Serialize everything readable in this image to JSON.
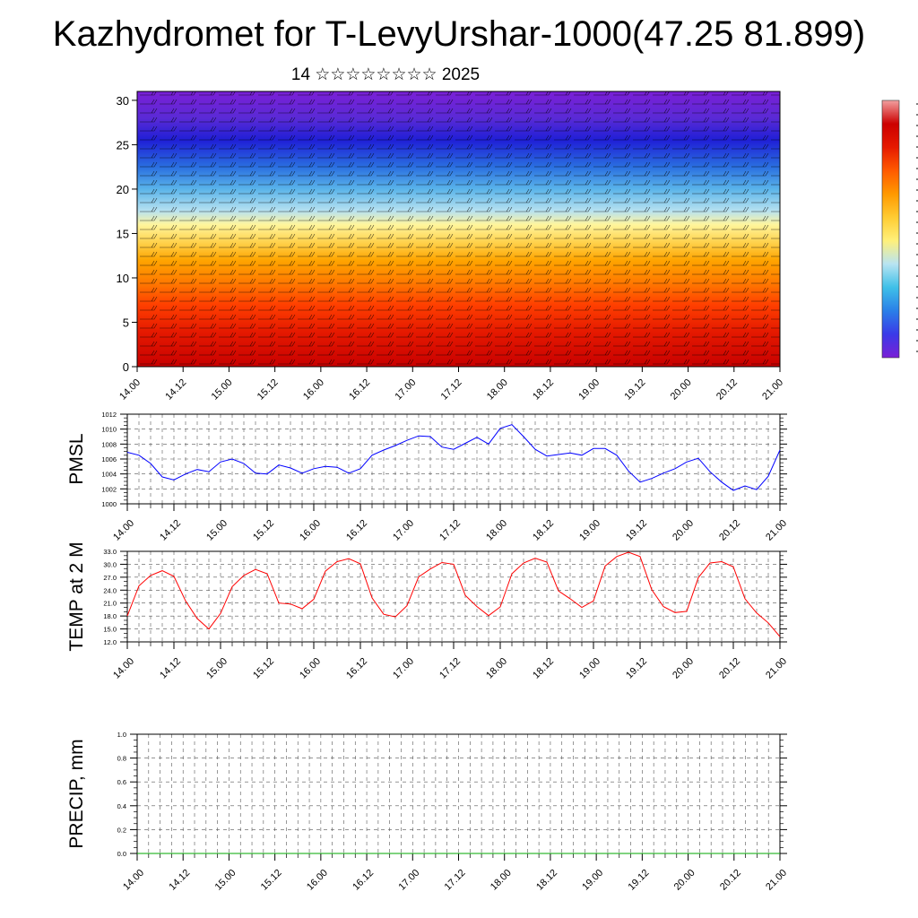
{
  "header": {
    "title": "Kazhydromet for T-LevyUrshar-1000(47.25 81.899)",
    "subtitle": "14 ☆☆☆☆☆☆☆☆ 2025"
  },
  "colors": {
    "pmsl_line": "#0000ff",
    "temp_line": "#ff0000",
    "precip_line": "#00aa00",
    "grid": "#666666",
    "colorbar_stops": [
      "#7a1fd6",
      "#3a3ae8",
      "#2a7fe8",
      "#3fc0e8",
      "#b8e4f2",
      "#fff07a",
      "#ffcc33",
      "#ff9900",
      "#ff5a00",
      "#e61a00",
      "#cc0000",
      "#f2a0a0"
    ]
  },
  "chart_data": [
    {
      "type": "heatmap",
      "name": "cross-section",
      "title": "",
      "ylabel": "",
      "x_tick_labels": [
        "14.00",
        "14.12",
        "15.00",
        "15.12",
        "16.00",
        "16.12",
        "17.00",
        "17.12",
        "18.00",
        "18.12",
        "19.00",
        "19.12",
        "20.00",
        "20.12",
        "21.00"
      ],
      "y_ticks": [
        0,
        5,
        10,
        15,
        20,
        25,
        30
      ],
      "ylim": [
        0,
        31
      ],
      "color_levels_bottom_to_top": [
        "#c80000",
        "#e61a00",
        "#ff4000",
        "#ff7a00",
        "#ffa500",
        "#ffd24d",
        "#fff59d",
        "#b8e2f0",
        "#5ab4ea",
        "#2a6fe0",
        "#1f1fd6",
        "#5a2ad6",
        "#7a1fd6"
      ],
      "color_level_heights": [
        0,
        4,
        7,
        9.5,
        12,
        14,
        16,
        17.5,
        20,
        22.5,
        25.5,
        28,
        31
      ],
      "wind_barbs": true
    },
    {
      "type": "line",
      "name": "pmsl",
      "ylabel": "PMSL",
      "ylim": [
        1000,
        1012
      ],
      "y_ticks": [
        1000,
        1002,
        1004,
        1006,
        1008,
        1010,
        1012
      ],
      "x_tick_labels": [
        "14.00",
        "14.12",
        "15.00",
        "15.12",
        "16.00",
        "16.12",
        "17.00",
        "17.12",
        "18.00",
        "18.12",
        "19.00",
        "19.12",
        "20.00",
        "20.12",
        "21.00"
      ],
      "x_hours": [
        0,
        3,
        6,
        9,
        12,
        15,
        18,
        21,
        24,
        27,
        30,
        33,
        36,
        39,
        42,
        45,
        48,
        51,
        54,
        57,
        60,
        63,
        66,
        69,
        72,
        75,
        78,
        81,
        84,
        87,
        90,
        93,
        96,
        99,
        102,
        105,
        108,
        111,
        114,
        117,
        120,
        123,
        126,
        129,
        132,
        135,
        138,
        141,
        144,
        147,
        150,
        153,
        156,
        159,
        162,
        165,
        168
      ],
      "values": [
        1006.9,
        1006.5,
        1005.4,
        1003.6,
        1003.2,
        1004.0,
        1004.6,
        1004.3,
        1005.6,
        1006.0,
        1005.4,
        1004.1,
        1004.0,
        1005.2,
        1004.8,
        1004.1,
        1004.7,
        1005.0,
        1004.9,
        1004.1,
        1004.7,
        1006.5,
        1007.2,
        1007.8,
        1008.5,
        1009.1,
        1009.0,
        1007.6,
        1007.3,
        1008.1,
        1008.9,
        1008.0,
        1010.1,
        1010.6,
        1009.0,
        1007.3,
        1006.4,
        1006.6,
        1006.8,
        1006.5,
        1007.4,
        1007.4,
        1006.5,
        1004.4,
        1002.9,
        1003.4,
        1004.1,
        1004.7,
        1005.6,
        1006.1,
        1004.3,
        1002.9,
        1001.8,
        1002.4,
        1001.9,
        1003.7,
        1007.2
      ]
    },
    {
      "type": "line",
      "name": "temp2m",
      "ylabel": "TEMP at 2 M",
      "ylim": [
        12,
        33
      ],
      "y_ticks": [
        12,
        15,
        18,
        21,
        24,
        27,
        30,
        33
      ],
      "y_tick_labels": [
        "12.0",
        "15.0",
        "18.0",
        "21.0",
        "24.0",
        "27.0",
        "30.0",
        "33.0"
      ],
      "x_tick_labels": [
        "14.00",
        "14.12",
        "15.00",
        "15.12",
        "16.00",
        "16.12",
        "17.00",
        "17.12",
        "18.00",
        "18.12",
        "19.00",
        "19.12",
        "20.00",
        "20.12",
        "21.00"
      ],
      "x_hours": [
        0,
        3,
        6,
        9,
        12,
        15,
        18,
        21,
        24,
        27,
        30,
        33,
        36,
        39,
        42,
        45,
        48,
        51,
        54,
        57,
        60,
        63,
        66,
        69,
        72,
        75,
        78,
        81,
        84,
        87,
        90,
        93,
        96,
        99,
        102,
        105,
        108,
        111,
        114,
        117,
        120,
        123,
        126,
        129,
        132,
        135,
        138,
        141,
        144,
        147,
        150,
        153,
        156,
        159,
        162,
        165,
        168
      ],
      "values": [
        18.0,
        25.0,
        27.4,
        28.5,
        27.2,
        21.5,
        17.4,
        15.0,
        18.6,
        24.8,
        27.4,
        28.8,
        27.8,
        21.0,
        20.8,
        19.7,
        21.9,
        28.4,
        30.6,
        31.3,
        30.1,
        22.2,
        18.4,
        17.8,
        20.4,
        27.1,
        28.9,
        30.4,
        30.0,
        22.8,
        20.2,
        18.1,
        20.1,
        27.8,
        30.3,
        31.4,
        30.5,
        23.8,
        22.0,
        20.0,
        21.5,
        29.6,
        31.8,
        32.8,
        31.8,
        24.1,
        20.2,
        18.8,
        19.1,
        26.9,
        30.3,
        30.6,
        29.4,
        22.0,
        18.7,
        16.4,
        13.2
      ]
    },
    {
      "type": "line",
      "name": "precip",
      "ylabel": "PRECIP, mm",
      "ylim": [
        0,
        1
      ],
      "y_ticks": [
        0,
        0.2,
        0.4,
        0.6,
        0.8,
        1.0
      ],
      "y_tick_labels": [
        "0.0",
        "0.2",
        "0.4",
        "0.6",
        "0.8",
        "1.0"
      ],
      "x_tick_labels": [
        "14.00",
        "14.12",
        "15.00",
        "15.12",
        "16.00",
        "16.12",
        "17.00",
        "17.12",
        "18.00",
        "18.12",
        "19.00",
        "19.12",
        "20.00",
        "20.12",
        "21.00"
      ],
      "x_hours": [
        0,
        168
      ],
      "values": [
        0,
        0
      ]
    }
  ]
}
